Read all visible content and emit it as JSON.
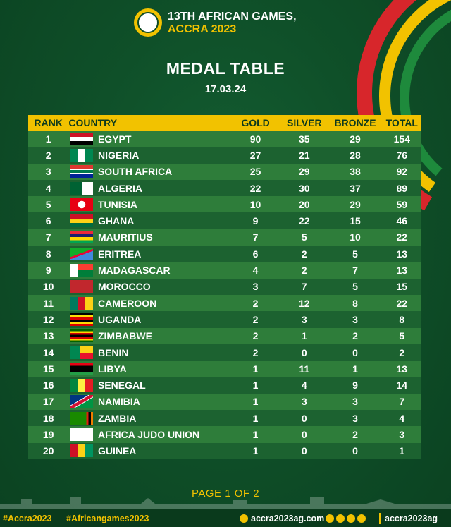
{
  "header": {
    "line1": "13TH AFRICAN GAMES,",
    "line2": "ACCRA 2023",
    "title": "MEDAL TABLE",
    "date": "17.03.24"
  },
  "columns": {
    "rank": "RANK",
    "country": "COUNTRY",
    "gold": "GOLD",
    "silver": "SILVER",
    "bronze": "BRONZE",
    "total": "TOTAL"
  },
  "rows": [
    {
      "rank": "1",
      "country": "EGYPT",
      "gold": "90",
      "silver": "35",
      "bronze": "29",
      "total": "154"
    },
    {
      "rank": "2",
      "country": "NIGERIA",
      "gold": "27",
      "silver": "21",
      "bronze": "28",
      "total": "76"
    },
    {
      "rank": "3",
      "country": "SOUTH AFRICA",
      "gold": "25",
      "silver": "29",
      "bronze": "38",
      "total": "92"
    },
    {
      "rank": "4",
      "country": "ALGERIA",
      "gold": "22",
      "silver": "30",
      "bronze": "37",
      "total": "89"
    },
    {
      "rank": "5",
      "country": "TUNISIA",
      "gold": "10",
      "silver": "20",
      "bronze": "29",
      "total": "59"
    },
    {
      "rank": "6",
      "country": "GHANA",
      "gold": "9",
      "silver": "22",
      "bronze": "15",
      "total": "46"
    },
    {
      "rank": "7",
      "country": "MAURITIUS",
      "gold": "7",
      "silver": "5",
      "bronze": "10",
      "total": "22"
    },
    {
      "rank": "8",
      "country": "ERITREA",
      "gold": "6",
      "silver": "2",
      "bronze": "5",
      "total": "13"
    },
    {
      "rank": "9",
      "country": "MADAGASCAR",
      "gold": "4",
      "silver": "2",
      "bronze": "7",
      "total": "13"
    },
    {
      "rank": "10",
      "country": "MOROCCO",
      "gold": "3",
      "silver": "7",
      "bronze": "5",
      "total": "15"
    },
    {
      "rank": "11",
      "country": "CAMEROON",
      "gold": "2",
      "silver": "12",
      "bronze": "8",
      "total": "22"
    },
    {
      "rank": "12",
      "country": "UGANDA",
      "gold": "2",
      "silver": "3",
      "bronze": "3",
      "total": "8"
    },
    {
      "rank": "13",
      "country": "ZIMBABWE",
      "gold": "2",
      "silver": "1",
      "bronze": "2",
      "total": "5"
    },
    {
      "rank": "14",
      "country": "BENIN",
      "gold": "2",
      "silver": "0",
      "bronze": "0",
      "total": "2"
    },
    {
      "rank": "15",
      "country": "LIBYA",
      "gold": "1",
      "silver": "11",
      "bronze": "1",
      "total": "13"
    },
    {
      "rank": "16",
      "country": "SENEGAL",
      "gold": "1",
      "silver": "4",
      "bronze": "9",
      "total": "14"
    },
    {
      "rank": "17",
      "country": "NAMIBIA",
      "gold": "1",
      "silver": "3",
      "bronze": "3",
      "total": "7"
    },
    {
      "rank": "18",
      "country": "ZAMBIA",
      "gold": "1",
      "silver": "0",
      "bronze": "3",
      "total": "4"
    },
    {
      "rank": "19",
      "country": "AFRICA JUDO UNION",
      "gold": "1",
      "silver": "0",
      "bronze": "2",
      "total": "3"
    },
    {
      "rank": "20",
      "country": "GUINEA",
      "gold": "1",
      "silver": "0",
      "bronze": "0",
      "total": "1"
    }
  ],
  "flags": [
    "linear-gradient(#ce1126 0 33%,#ffffff 33% 66%,#000000 66%)",
    "linear-gradient(90deg,#008751 0 33%,#ffffff 33% 66%,#008751 66%)",
    "linear-gradient(#de3831 0 33%,#ffffff 33% 38%,#007a4d 38% 62%,#ffffff 62% 67%,#002395 67%)",
    "linear-gradient(90deg,#006233 0 50%,#ffffff 50%)",
    "radial-gradient(circle at 50% 50%,#ffffff 0 5px,#e70013 5.5px)",
    "linear-gradient(#ce1126 0 33%,#fcd116 33% 66%,#006b3f 66%)",
    "linear-gradient(#ea2839 0 25%,#1a206d 25% 50%,#ffd500 50% 75%,#00a551 75%)",
    "linear-gradient(160deg,#12ad2b 0 45%,#ea0437 45% 55%,#4189dd 55%)",
    "linear-gradient(90deg,#ffffff 0 33%,transparent 33%),linear-gradient(#fc3d32 0 50%,#007e3a 50%)",
    "linear-gradient(#c1272d,#c1272d)",
    "linear-gradient(90deg,#007a5e 0 33%,#ce1126 33% 66%,#fcd116 66%)",
    "linear-gradient(#000000 0 16%,#fcdc04 16% 33%,#d90000 33% 50%,#000000 50% 66%,#fcdc04 66% 83%,#d90000 83%)",
    "linear-gradient(#006400 0 14%,#ffd200 14% 28%,#d40000 28% 42%,#000000 42% 58%,#d40000 58% 72%,#ffd200 72% 86%,#006400 86%)",
    "linear-gradient(90deg,#008751 0 40%,transparent 40%),linear-gradient(#fcd116 0 50%,#e8112d 50%)",
    "linear-gradient(#e70013 0 25%,#000000 25% 75%,#239e46 75%)",
    "linear-gradient(90deg,#00853f 0 33%,#fdef42 33% 66%,#e31b23 66%)",
    "linear-gradient(150deg,#003580 0 40%,#ffffff 40% 43%,#d21034 43% 57%,#ffffff 57% 60%,#009543 60%)",
    "linear-gradient(90deg,#198a00 0 70%,#de2010 70% 80%,#000000 80% 90%,#ef7d00 90%)",
    "linear-gradient(#ffffff,#ffffff)",
    "linear-gradient(90deg,#ce1126 0 33%,#fcd116 33% 66%,#009460 66%)"
  ],
  "footer": {
    "page": "PAGE 1 OF 2",
    "hashtag1": "#Accra2023",
    "hashtag2": "#Africangames2023",
    "website": "accra2023ag.com",
    "handle": "accra2023ag"
  },
  "colors": {
    "accent": "#f2c200",
    "background": "#0d4a26",
    "row_light": "#2e7d3a",
    "row_dark": "#1c6230"
  }
}
